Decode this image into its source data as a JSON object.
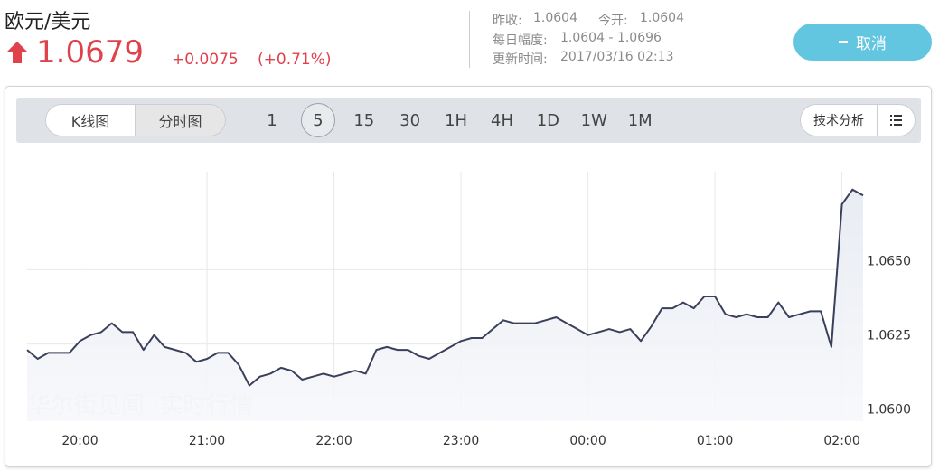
{
  "header": {
    "pair": "欧元/美元",
    "price": "1.0679",
    "change": "+0.0075",
    "change_pct": "(+0.71%)",
    "stats": [
      {
        "label": "昨收:",
        "value": "1.0604"
      },
      {
        "label": "今开:",
        "value": "1.0604"
      }
    ],
    "range_label": "每日幅度:",
    "range": "1.0604 - 1.0696",
    "update_label": "更新时间:",
    "update_time": "2017/03/16 02:13",
    "cancel": "取消"
  },
  "toolbar": {
    "tabs": [
      "K线图",
      "分时图"
    ],
    "selected_tab": 1,
    "periods": [
      "1",
      "5",
      "15",
      "30",
      "1H",
      "4H",
      "1D",
      "1W",
      "1M"
    ],
    "selected_period": 1,
    "analysis": "技术分析"
  },
  "chart_data": {
    "type": "line",
    "watermark": "华尔街见闻 ·实时行情",
    "color": "#3a3f5c",
    "grid": true,
    "categories": [
      null,
      null,
      null,
      null,
      null,
      "20:00",
      null,
      null,
      null,
      null,
      null,
      null,
      null,
      null,
      null,
      null,
      null,
      "21:00",
      null,
      null,
      null,
      null,
      null,
      null,
      null,
      null,
      null,
      null,
      null,
      "22:00",
      null,
      null,
      null,
      null,
      null,
      null,
      null,
      null,
      null,
      null,
      null,
      "23:00",
      null,
      null,
      null,
      null,
      null,
      null,
      null,
      null,
      null,
      null,
      null,
      "00:00",
      null,
      null,
      null,
      null,
      null,
      null,
      null,
      null,
      null,
      null,
      null,
      "01:00",
      null,
      null,
      null,
      null,
      null,
      null,
      null,
      null,
      null,
      null,
      null,
      "02:00",
      null,
      null
    ],
    "values": [
      1.0623,
      1.062,
      1.0622,
      1.0622,
      1.0622,
      1.0626,
      1.0628,
      1.0629,
      1.0632,
      1.0629,
      1.0629,
      1.0623,
      1.0628,
      1.0624,
      1.0623,
      1.0622,
      1.0619,
      1.062,
      1.0622,
      1.0622,
      1.0618,
      1.0611,
      1.0614,
      1.0615,
      1.0617,
      1.0616,
      1.0613,
      1.0614,
      1.0615,
      1.0614,
      1.0615,
      1.0616,
      1.0615,
      1.0623,
      1.0624,
      1.0623,
      1.0623,
      1.0621,
      1.062,
      1.0622,
      1.0624,
      1.0626,
      1.0627,
      1.0627,
      1.063,
      1.0633,
      1.0632,
      1.0632,
      1.0632,
      1.0633,
      1.0634,
      1.0632,
      1.063,
      1.0628,
      1.0629,
      1.063,
      1.0629,
      1.063,
      1.0626,
      1.0631,
      1.0637,
      1.0637,
      1.0639,
      1.0637,
      1.0641,
      1.0641,
      1.0635,
      1.0634,
      1.0635,
      1.0634,
      1.0634,
      1.0639,
      1.0634,
      1.0635,
      1.0636,
      1.0636,
      1.0624,
      1.0672,
      1.0677,
      1.0675
    ],
    "ylim": [
      1.0599,
      1.0683
    ],
    "yticks": [
      {
        "value": 1.06,
        "label": "1.0600"
      },
      {
        "value": 1.0625,
        "label": "1.0625"
      },
      {
        "value": 1.065,
        "label": "1.0650"
      }
    ]
  }
}
